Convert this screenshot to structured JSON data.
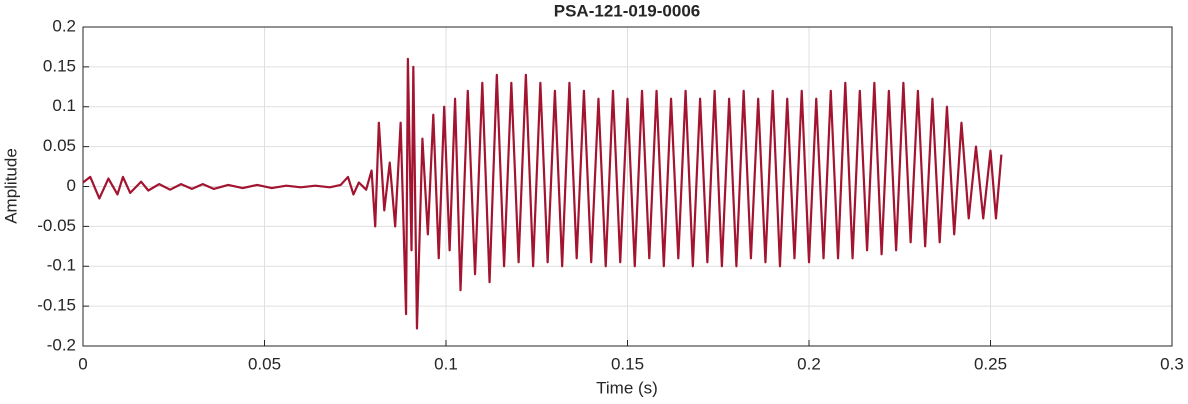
{
  "chart_data": {
    "type": "line",
    "title": "PSA-121-019-0006",
    "x_label": "Time (s)",
    "y_label": "Amplitude",
    "x": [
      0,
      0.002,
      0.0045,
      0.007,
      0.0095,
      0.011,
      0.013,
      0.016,
      0.018,
      0.021,
      0.024,
      0.027,
      0.03,
      0.033,
      0.036,
      0.04,
      0.044,
      0.048,
      0.052,
      0.056,
      0.06,
      0.064,
      0.068,
      0.071,
      0.073,
      0.0745,
      0.076,
      0.078,
      0.0795,
      0.0805,
      0.0815,
      0.083,
      0.0845,
      0.086,
      0.0875,
      0.089,
      0.0895,
      0.0905,
      0.091,
      0.092,
      0.0935,
      0.095,
      0.0965,
      0.098,
      0.0995,
      0.101,
      0.1025,
      0.104,
      0.106,
      0.108,
      0.11,
      0.112,
      0.114,
      0.116,
      0.118,
      0.12,
      0.122,
      0.124,
      0.126,
      0.128,
      0.13,
      0.132,
      0.134,
      0.136,
      0.138,
      0.14,
      0.142,
      0.144,
      0.146,
      0.148,
      0.15,
      0.152,
      0.154,
      0.156,
      0.158,
      0.16,
      0.162,
      0.164,
      0.166,
      0.168,
      0.17,
      0.172,
      0.174,
      0.176,
      0.178,
      0.18,
      0.182,
      0.184,
      0.186,
      0.188,
      0.19,
      0.192,
      0.194,
      0.196,
      0.198,
      0.2,
      0.202,
      0.204,
      0.206,
      0.208,
      0.21,
      0.212,
      0.214,
      0.216,
      0.218,
      0.22,
      0.222,
      0.224,
      0.226,
      0.228,
      0.23,
      0.232,
      0.234,
      0.236,
      0.238,
      0.24,
      0.242,
      0.244,
      0.246,
      0.248,
      0.25,
      0.2515,
      0.253
    ],
    "series": [
      {
        "name": "Amplitude",
        "color": "#a2142f",
        "values": [
          0.005,
          0.012,
          -0.015,
          0.01,
          -0.01,
          0.012,
          -0.008,
          0.006,
          -0.005,
          0.003,
          -0.004,
          0.003,
          -0.003,
          0.003,
          -0.003,
          0.002,
          -0.002,
          0.002,
          -0.002,
          0.001,
          -0.001,
          0.001,
          -0.001,
          0.002,
          0.012,
          -0.01,
          0.005,
          -0.004,
          0.02,
          -0.05,
          0.08,
          -0.03,
          0.03,
          -0.05,
          0.08,
          -0.16,
          0.16,
          -0.08,
          0.15,
          -0.178,
          0.06,
          -0.06,
          0.09,
          -0.09,
          0.1,
          -0.08,
          0.11,
          -0.13,
          0.12,
          -0.11,
          0.13,
          -0.12,
          0.14,
          -0.1,
          0.13,
          -0.095,
          0.14,
          -0.1,
          0.13,
          -0.095,
          0.12,
          -0.1,
          0.13,
          -0.09,
          0.12,
          -0.095,
          0.11,
          -0.1,
          0.12,
          -0.095,
          0.11,
          -0.1,
          0.12,
          -0.09,
          0.12,
          -0.1,
          0.11,
          -0.09,
          0.12,
          -0.1,
          0.11,
          -0.095,
          0.12,
          -0.1,
          0.11,
          -0.1,
          0.12,
          -0.09,
          0.11,
          -0.095,
          0.12,
          -0.1,
          0.11,
          -0.09,
          0.12,
          -0.095,
          0.11,
          -0.09,
          0.12,
          -0.09,
          0.13,
          -0.09,
          0.12,
          -0.08,
          0.13,
          -0.085,
          0.12,
          -0.08,
          0.13,
          -0.07,
          0.12,
          -0.075,
          0.11,
          -0.07,
          0.1,
          -0.06,
          0.08,
          -0.04,
          0.05,
          -0.04,
          0.045,
          -0.04,
          0.04
        ]
      }
    ],
    "xlim": [
      0,
      0.3
    ],
    "xticks": [
      0,
      0.05,
      0.1,
      0.15,
      0.2,
      0.25,
      0.3
    ],
    "ylim": [
      -0.2,
      0.2
    ],
    "yticks": [
      -0.2,
      -0.15,
      -0.1,
      -0.05,
      0,
      0.05,
      0.1,
      0.15,
      0.2
    ],
    "grid": true
  }
}
